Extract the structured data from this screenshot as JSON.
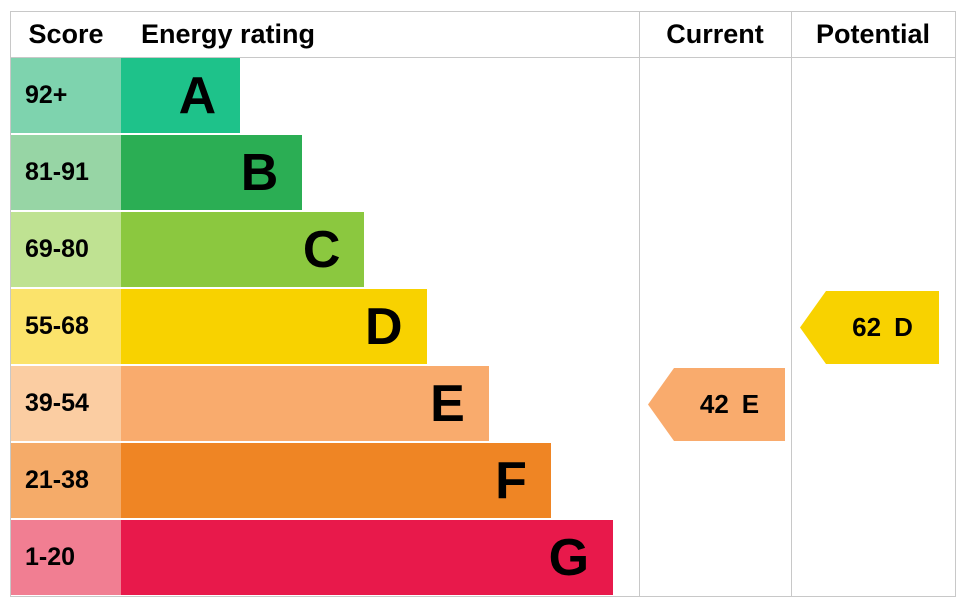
{
  "header": {
    "score": "Score",
    "rating": "Energy rating",
    "current": "Current",
    "potential": "Potential"
  },
  "chart_data": {
    "type": "bar",
    "variant": "epc-energy-rating",
    "title": "",
    "columns": [
      "Score",
      "Energy rating",
      "Current",
      "Potential"
    ],
    "bands": [
      {
        "score_range": "92+",
        "letter": "A",
        "color": "#1ec28a",
        "score_bg": "#7ed3ae",
        "width_pct": 23
      },
      {
        "score_range": "81-91",
        "letter": "B",
        "color": "#2bae54",
        "score_bg": "#97d5a5",
        "width_pct": 35
      },
      {
        "score_range": "69-80",
        "letter": "C",
        "color": "#8bc83f",
        "score_bg": "#bfe292",
        "width_pct": 47
      },
      {
        "score_range": "55-68",
        "letter": "D",
        "color": "#f8d200",
        "score_bg": "#fbe36b",
        "width_pct": 59
      },
      {
        "score_range": "39-54",
        "letter": "E",
        "color": "#f9ab6d",
        "score_bg": "#fbcda2",
        "width_pct": 71
      },
      {
        "score_range": "21-38",
        "letter": "F",
        "color": "#ef8524",
        "score_bg": "#f5ab69",
        "width_pct": 83
      },
      {
        "score_range": "1-20",
        "letter": "G",
        "color": "#e8194b",
        "score_bg": "#f17e92",
        "width_pct": 95
      }
    ],
    "current": {
      "value": 42,
      "letter": "E",
      "band_index": 4,
      "color": "#f9ab6d"
    },
    "potential": {
      "value": 62,
      "letter": "D",
      "band_index": 3,
      "color": "#f8d200"
    }
  }
}
